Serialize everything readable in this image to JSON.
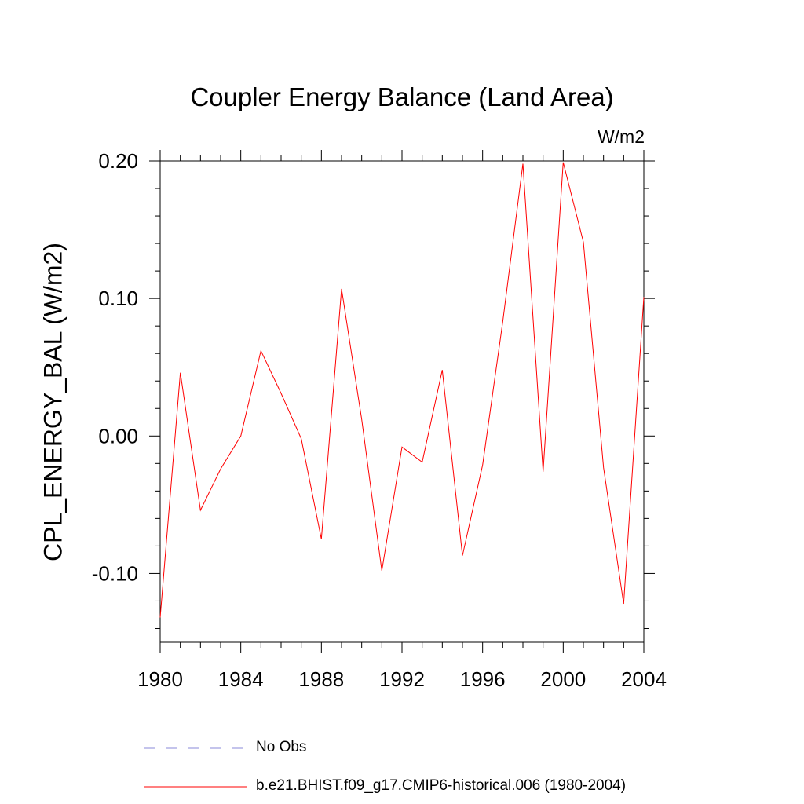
{
  "chart_data": {
    "type": "line",
    "title": "Coupler Energy Balance (Land Area)",
    "units": "W/m2",
    "ylabel": "CPL_ENERGY_BAL  (W/m2)",
    "xlabel": "",
    "xlim": [
      1980,
      2004
    ],
    "ylim": [
      -0.15,
      0.2
    ],
    "x_ticks": [
      1980,
      1984,
      1988,
      1992,
      1996,
      2000,
      2004
    ],
    "x_tick_labels": [
      "1980",
      "1984",
      "1988",
      "1992",
      "1996",
      "2000",
      "2004"
    ],
    "y_ticks": [
      0.2,
      0.1,
      0.0,
      -0.1
    ],
    "y_tick_labels": [
      "0.20",
      "0.10",
      "0.00",
      "-0.10"
    ],
    "x": [
      1980,
      1981,
      1982,
      1983,
      1984,
      1985,
      1986,
      1987,
      1988,
      1989,
      1990,
      1991,
      1992,
      1993,
      1994,
      1995,
      1996,
      1997,
      1998,
      1999,
      2000,
      2001,
      2002,
      2003,
      2004
    ],
    "series": [
      {
        "name": "b.e21.BHIST.f09_g17.CMIP6-historical.006 (1980-2004)",
        "color": "#ff0000",
        "values": [
          -0.132,
          0.046,
          -0.054,
          -0.024,
          0.0,
          0.062,
          0.031,
          -0.002,
          -0.075,
          0.107,
          0.012,
          -0.098,
          -0.008,
          -0.019,
          0.048,
          -0.087,
          -0.021,
          0.083,
          0.198,
          -0.026,
          0.199,
          0.141,
          -0.023,
          -0.122,
          0.101
        ]
      }
    ],
    "legend": [
      {
        "label": "No Obs",
        "color": "#8a8ad8",
        "style": "dashed"
      },
      {
        "label": "b.e21.BHIST.f09_g17.CMIP6-historical.006 (1980-2004)",
        "color": "#ff0000",
        "style": "solid"
      }
    ]
  }
}
